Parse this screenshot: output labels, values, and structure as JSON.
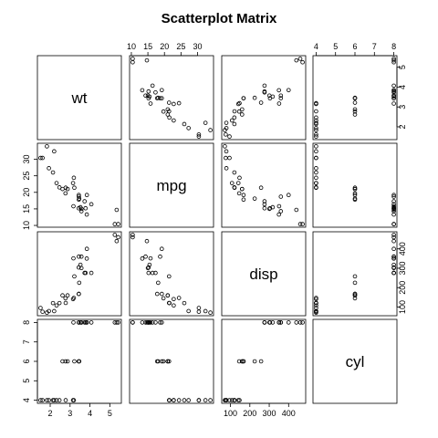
{
  "chart_data": {
    "type": "scatter",
    "title": "Scatterplot Matrix",
    "variables": [
      "wt",
      "mpg",
      "disp",
      "cyl"
    ],
    "ranges": {
      "wt": [
        1.513,
        5.424
      ],
      "mpg": [
        10.4,
        33.9
      ],
      "disp": [
        71.1,
        472.0
      ],
      "cyl": [
        4,
        8
      ]
    },
    "ticks": {
      "wt": [
        2,
        3,
        4,
        5
      ],
      "mpg": [
        10,
        15,
        20,
        25,
        30
      ],
      "disp": [
        100,
        200,
        300,
        400
      ],
      "cyl": [
        4,
        5,
        6,
        7,
        8
      ]
    },
    "axis_placement": {
      "wt": {
        "tick_side": "bottom",
        "panel_index": 0
      },
      "mpg": {
        "tick_side": "top",
        "panel_index": 1
      },
      "disp": {
        "tick_side": "bottom",
        "panel_index": 2
      },
      "cyl": {
        "tick_side": "top",
        "panel_index": 3
      }
    },
    "row_axis_placement": {
      "wt": {
        "tick_side": "right",
        "panel_index": 3
      },
      "mpg": {
        "tick_side": "left",
        "panel_index": 0
      },
      "disp": {
        "tick_side": "right",
        "panel_index": 3
      },
      "cyl": {
        "tick_side": "left",
        "panel_index": 0
      }
    },
    "data": {
      "mpg": [
        21.0,
        21.0,
        22.8,
        21.4,
        18.7,
        18.1,
        14.3,
        24.4,
        22.8,
        19.2,
        17.8,
        16.4,
        17.3,
        15.2,
        10.4,
        10.4,
        14.7,
        32.4,
        30.4,
        33.9,
        21.5,
        15.5,
        15.2,
        13.3,
        19.2,
        27.3,
        26.0,
        30.4,
        15.8,
        19.7,
        15.0,
        21.4
      ],
      "cyl": [
        6,
        6,
        4,
        6,
        8,
        6,
        8,
        4,
        4,
        6,
        6,
        8,
        8,
        8,
        8,
        8,
        8,
        4,
        4,
        4,
        4,
        8,
        8,
        8,
        8,
        4,
        4,
        4,
        8,
        6,
        8,
        4
      ],
      "disp": [
        160,
        160,
        108,
        258,
        360,
        225,
        360,
        146.7,
        140.8,
        167.6,
        167.6,
        275.8,
        275.8,
        275.8,
        472,
        460,
        440,
        78.7,
        75.7,
        71.1,
        120.1,
        318,
        304,
        350,
        400,
        79,
        120.3,
        95.1,
        351,
        145,
        301,
        121
      ],
      "wt": [
        2.62,
        2.875,
        2.32,
        3.215,
        3.44,
        3.46,
        3.57,
        3.19,
        3.15,
        3.44,
        3.44,
        4.07,
        3.73,
        3.78,
        5.25,
        5.424,
        5.345,
        2.2,
        1.615,
        1.835,
        2.465,
        3.52,
        3.435,
        3.84,
        3.845,
        1.935,
        2.14,
        1.513,
        3.17,
        2.77,
        3.57,
        2.78
      ]
    },
    "grid": false,
    "legend": "none"
  }
}
